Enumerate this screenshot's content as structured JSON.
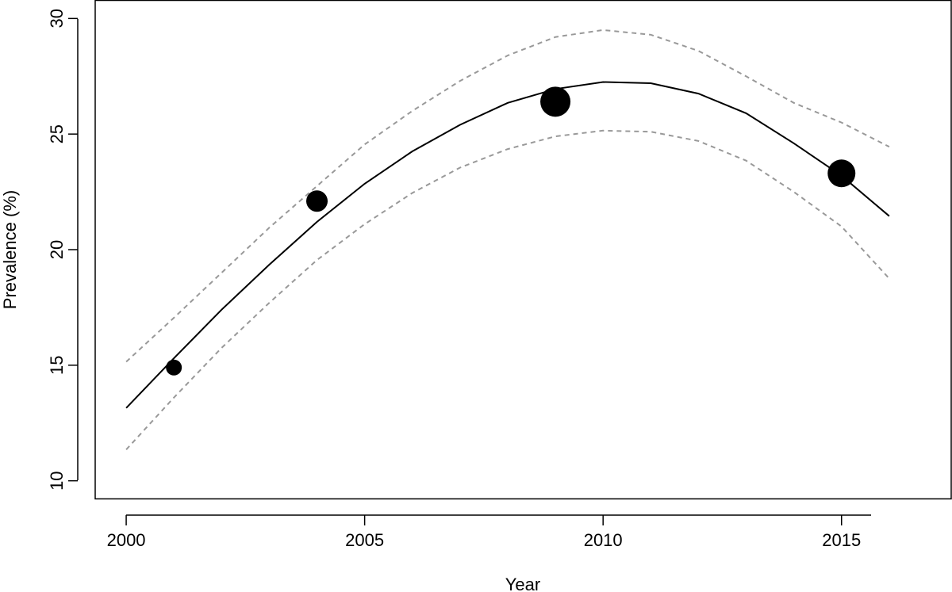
{
  "chart_data": {
    "type": "scatter",
    "title": "",
    "xlabel": "Year",
    "ylabel": "Prevalence (%)",
    "xlim": [
      1999.35,
      2017.3
    ],
    "ylim": [
      9.2,
      30.8
    ],
    "xticks": [
      2000,
      2005,
      2010,
      2015
    ],
    "yticks": [
      10,
      15,
      20,
      25,
      30
    ],
    "grid": false,
    "points": [
      {
        "x": 2001,
        "y": 14.9,
        "size": 1.0
      },
      {
        "x": 2004,
        "y": 22.1,
        "size": 1.35
      },
      {
        "x": 2009,
        "y": 26.4,
        "size": 1.9
      },
      {
        "x": 2015,
        "y": 23.3,
        "size": 1.75
      }
    ],
    "fit_curve": {
      "style": "solid",
      "color": "#000000",
      "x": [
        2000,
        2001,
        2002,
        2003,
        2004,
        2005,
        2006,
        2007,
        2008,
        2009,
        2010,
        2011,
        2012,
        2013,
        2014,
        2015,
        2016
      ],
      "y": [
        13.15,
        15.3,
        17.4,
        19.35,
        21.2,
        22.85,
        24.25,
        25.4,
        26.35,
        26.95,
        27.25,
        27.2,
        26.75,
        25.9,
        24.6,
        23.2,
        21.45
      ]
    },
    "confidence_band": {
      "style": "dashed",
      "color": "#999999",
      "upper": {
        "x": [
          2000,
          2001,
          2002,
          2003,
          2004,
          2005,
          2006,
          2007,
          2008,
          2009,
          2010,
          2011,
          2012,
          2013,
          2014,
          2015,
          2016
        ],
        "y": [
          15.15,
          17.05,
          19.0,
          20.95,
          22.75,
          24.55,
          26.0,
          27.3,
          28.4,
          29.2,
          29.5,
          29.3,
          28.6,
          27.5,
          26.35,
          25.5,
          24.45
        ]
      },
      "lower": {
        "x": [
          2000,
          2001,
          2002,
          2003,
          2004,
          2005,
          2006,
          2007,
          2008,
          2009,
          2010,
          2011,
          2012,
          2013,
          2014,
          2015,
          2016
        ],
        "y": [
          11.35,
          13.6,
          15.75,
          17.7,
          19.55,
          21.1,
          22.45,
          23.55,
          24.35,
          24.9,
          25.15,
          25.1,
          24.7,
          23.85,
          22.5,
          21.0,
          18.75
        ]
      }
    }
  }
}
